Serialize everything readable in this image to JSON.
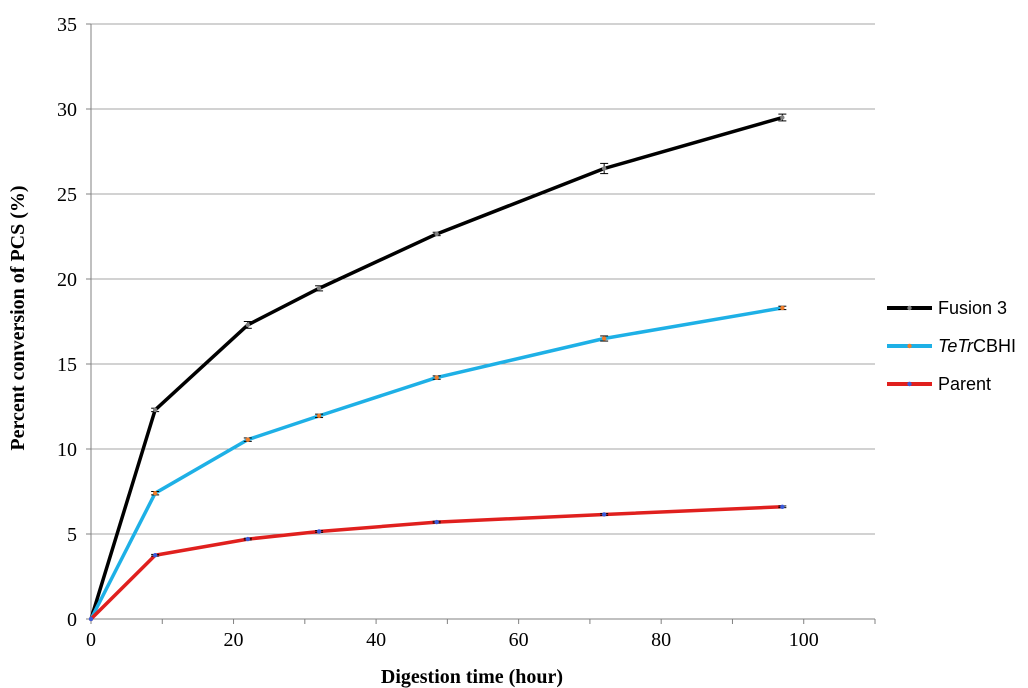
{
  "chart_data": {
    "type": "line",
    "title": "",
    "xlabel": "Digestion time (hour)",
    "ylabel": "Percent conversion of PCS (%)",
    "xlim": [
      0,
      110
    ],
    "ylim": [
      0,
      35
    ],
    "xticks": [
      0,
      20,
      40,
      60,
      80,
      100
    ],
    "yticks": [
      0,
      5,
      10,
      15,
      20,
      25,
      30,
      35
    ],
    "grid": "horizontal",
    "legend_position": "right",
    "x": [
      0,
      9,
      22,
      32,
      48.5,
      72,
      97
    ],
    "series": [
      {
        "name": "Fusion 3",
        "name_parts": [
          {
            "text": "Fusion 3",
            "italic": false
          }
        ],
        "color": "#000000",
        "marker_color": "#808080",
        "values": [
          0,
          12.3,
          17.3,
          19.45,
          22.65,
          26.5,
          29.5
        ],
        "errors": [
          0,
          0.1,
          0.2,
          0.15,
          0.1,
          0.3,
          0.2
        ]
      },
      {
        "name": "TeTrCBHI",
        "name_parts": [
          {
            "text": "TeTr",
            "italic": true
          },
          {
            "text": "CBHI",
            "italic": false
          }
        ],
        "color": "#1eb0e6",
        "marker_color": "#f07d2a",
        "values": [
          0,
          7.4,
          10.55,
          11.95,
          14.2,
          16.5,
          18.3
        ],
        "errors": [
          0,
          0.1,
          0.1,
          0.1,
          0.1,
          0.15,
          0.1
        ]
      },
      {
        "name": "Parent",
        "name_parts": [
          {
            "text": "Parent",
            "italic": false
          }
        ],
        "color": "#e0201e",
        "marker_color": "#3b5bd9",
        "values": [
          0,
          3.75,
          4.7,
          5.15,
          5.7,
          6.15,
          6.6
        ],
        "errors": [
          0,
          0.05,
          0.05,
          0.05,
          0.05,
          0.05,
          0.05
        ]
      }
    ]
  }
}
